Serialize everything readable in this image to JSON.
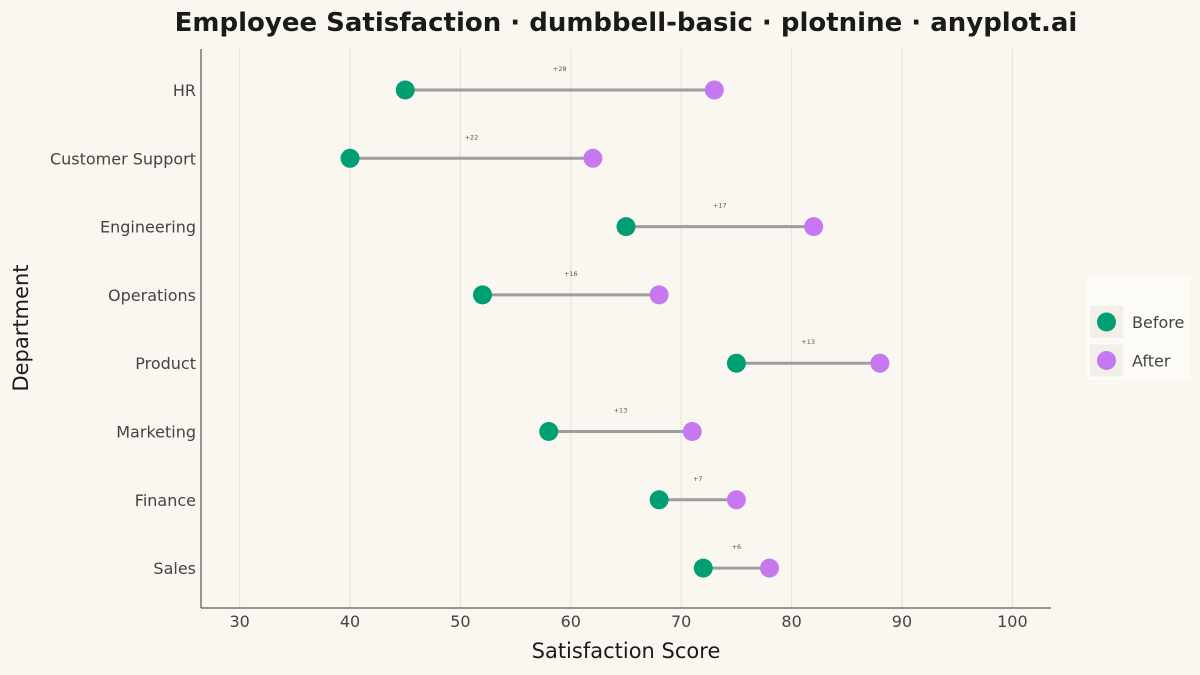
{
  "chart_data": {
    "type": "dumbbell",
    "title": "Employee Satisfaction · dumbbell-basic · plotnine · anyplot.ai",
    "xlabel": "Satisfaction Score",
    "ylabel": "Department",
    "xlim": [
      26.5,
      103.5
    ],
    "xticks": [
      30,
      40,
      50,
      60,
      70,
      80,
      90,
      100
    ],
    "grid": "vertical",
    "legend_placement": "right",
    "categories": [
      "HR",
      "Customer Support",
      "Engineering",
      "Operations",
      "Product",
      "Marketing",
      "Finance",
      "Sales"
    ],
    "series": [
      {
        "name": "Before",
        "color": "#009E73",
        "values": [
          45,
          40,
          65,
          52,
          75,
          58,
          68,
          72
        ]
      },
      {
        "name": "After",
        "color": "#C678F0",
        "values": [
          73,
          62,
          82,
          68,
          88,
          71,
          75,
          78
        ]
      }
    ],
    "differences": [
      "+28",
      "+22",
      "+17",
      "+16",
      "+13",
      "+13",
      "+7",
      "+6"
    ],
    "connector_color": "#9E9E9E"
  }
}
